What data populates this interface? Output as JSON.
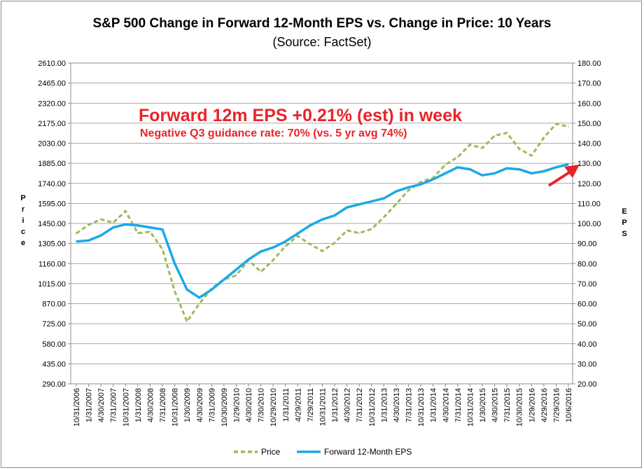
{
  "colors": {
    "price": "#9bbb59",
    "eps": "#1da8e8",
    "annotation": "#e8242a",
    "grid": "#8c8c8c"
  },
  "chart_data": {
    "type": "line",
    "title": "S&P 500 Change in Forward 12-Month EPS vs. Change in Price: 10 Years",
    "subtitle": "(Source: FactSet)",
    "ylabel_left": "Price",
    "ylabel_right": "EPS",
    "ylim_left": [
      290,
      2610
    ],
    "ylim_right": [
      20,
      180
    ],
    "yticks_left": [
      "2610.00",
      "2465.00",
      "2320.00",
      "2175.00",
      "2030.00",
      "1885.00",
      "1740.00",
      "1595.00",
      "1450.00",
      "1305.00",
      "1160.00",
      "1015.00",
      "870.00",
      "725.00",
      "580.00",
      "435.00",
      "290.00"
    ],
    "yticks_right": [
      "180.00",
      "170.00",
      "160.00",
      "150.00",
      "140.00",
      "130.00",
      "120.00",
      "110.00",
      "100.00",
      "90.00",
      "80.00",
      "70.00",
      "60.00",
      "50.00",
      "40.00",
      "30.00",
      "20.00"
    ],
    "xticks": [
      "10/31/2006",
      "1/31/2007",
      "4/30/2007",
      "7/31/2007",
      "10/31/2007",
      "1/31/2008",
      "4/30/2008",
      "7/31/2008",
      "10/31/2008",
      "1/30/2009",
      "4/30/2009",
      "7/31/2009",
      "10/30/2009",
      "1/29/2010",
      "4/30/2010",
      "7/30/2010",
      "10/29/2010",
      "1/31/2011",
      "4/29/2011",
      "7/29/2011",
      "10/31/2011",
      "1/31/2012",
      "4/30/2012",
      "7/31/2012",
      "10/31/2012",
      "1/31/2013",
      "4/30/2013",
      "7/31/2013",
      "10/31/2013",
      "1/31/2014",
      "4/30/2014",
      "7/31/2014",
      "10/31/2014",
      "1/30/2015",
      "4/30/2015",
      "7/31/2015",
      "10/30/2015",
      "1/29/2016",
      "4/29/2016",
      "7/29/2016",
      "10/6/2016"
    ],
    "grid": "horizontal",
    "legend_position": "bottom",
    "series": [
      {
        "name": "Price",
        "axis": "left",
        "style": "dashed",
        "x": [
          "10/31/2006",
          "1/31/2007",
          "4/30/2007",
          "7/31/2007",
          "10/31/2007",
          "1/31/2008",
          "4/30/2008",
          "7/31/2008",
          "10/31/2008",
          "1/30/2009",
          "4/30/2009",
          "7/31/2009",
          "10/30/2009",
          "1/29/2010",
          "4/30/2010",
          "7/30/2010",
          "10/29/2010",
          "1/31/2011",
          "4/29/2011",
          "7/29/2011",
          "10/31/2011",
          "1/31/2012",
          "4/30/2012",
          "7/31/2012",
          "10/31/2012",
          "1/31/2013",
          "4/30/2013",
          "7/31/2013",
          "10/31/2013",
          "1/31/2014",
          "4/30/2014",
          "7/31/2014",
          "10/31/2014",
          "1/30/2015",
          "4/30/2015",
          "7/31/2015",
          "10/30/2015",
          "1/29/2016",
          "4/29/2016",
          "7/29/2016",
          "10/6/2016"
        ],
        "values": [
          1378,
          1440,
          1480,
          1455,
          1540,
          1380,
          1390,
          1265,
          960,
          740,
          870,
          980,
          1045,
          1075,
          1185,
          1100,
          1185,
          1285,
          1360,
          1300,
          1250,
          1310,
          1400,
          1380,
          1410,
          1495,
          1590,
          1690,
          1750,
          1780,
          1875,
          1930,
          2020,
          1995,
          2085,
          2105,
          1990,
          1940,
          2070,
          2170,
          2150
        ]
      },
      {
        "name": "Forward 12-Month EPS",
        "axis": "right",
        "style": "solid",
        "x": [
          "10/31/2006",
          "1/31/2007",
          "4/30/2007",
          "7/31/2007",
          "10/31/2007",
          "1/31/2008",
          "4/30/2008",
          "7/31/2008",
          "10/31/2008",
          "1/30/2009",
          "4/30/2009",
          "7/31/2009",
          "10/30/2009",
          "1/29/2010",
          "4/30/2010",
          "7/30/2010",
          "10/29/2010",
          "1/31/2011",
          "4/29/2011",
          "7/29/2011",
          "10/31/2011",
          "1/31/2012",
          "4/30/2012",
          "7/31/2012",
          "10/31/2012",
          "1/31/2013",
          "4/30/2013",
          "7/31/2013",
          "10/31/2013",
          "1/31/2014",
          "4/30/2014",
          "7/31/2014",
          "10/31/2014",
          "1/30/2015",
          "4/30/2015",
          "7/31/2015",
          "10/30/2015",
          "1/29/2016",
          "4/29/2016",
          "7/29/2016",
          "10/6/2016"
        ],
        "values": [
          91,
          91.5,
          94,
          98,
          99.5,
          99,
          98,
          97,
          80,
          67,
          63,
          67,
          72,
          77,
          82,
          86,
          88,
          91,
          95,
          99,
          102,
          104,
          108,
          109.5,
          111,
          112.5,
          116,
          118,
          119.5,
          122,
          125,
          128,
          127,
          124,
          125,
          127.5,
          127,
          125,
          126,
          128,
          129.5
        ]
      }
    ],
    "annotations": [
      "Forward 12m EPS +0.21% (est) in week",
      "Negative Q3 guidance rate: 70% (vs. 5 yr avg 74%)"
    ]
  }
}
